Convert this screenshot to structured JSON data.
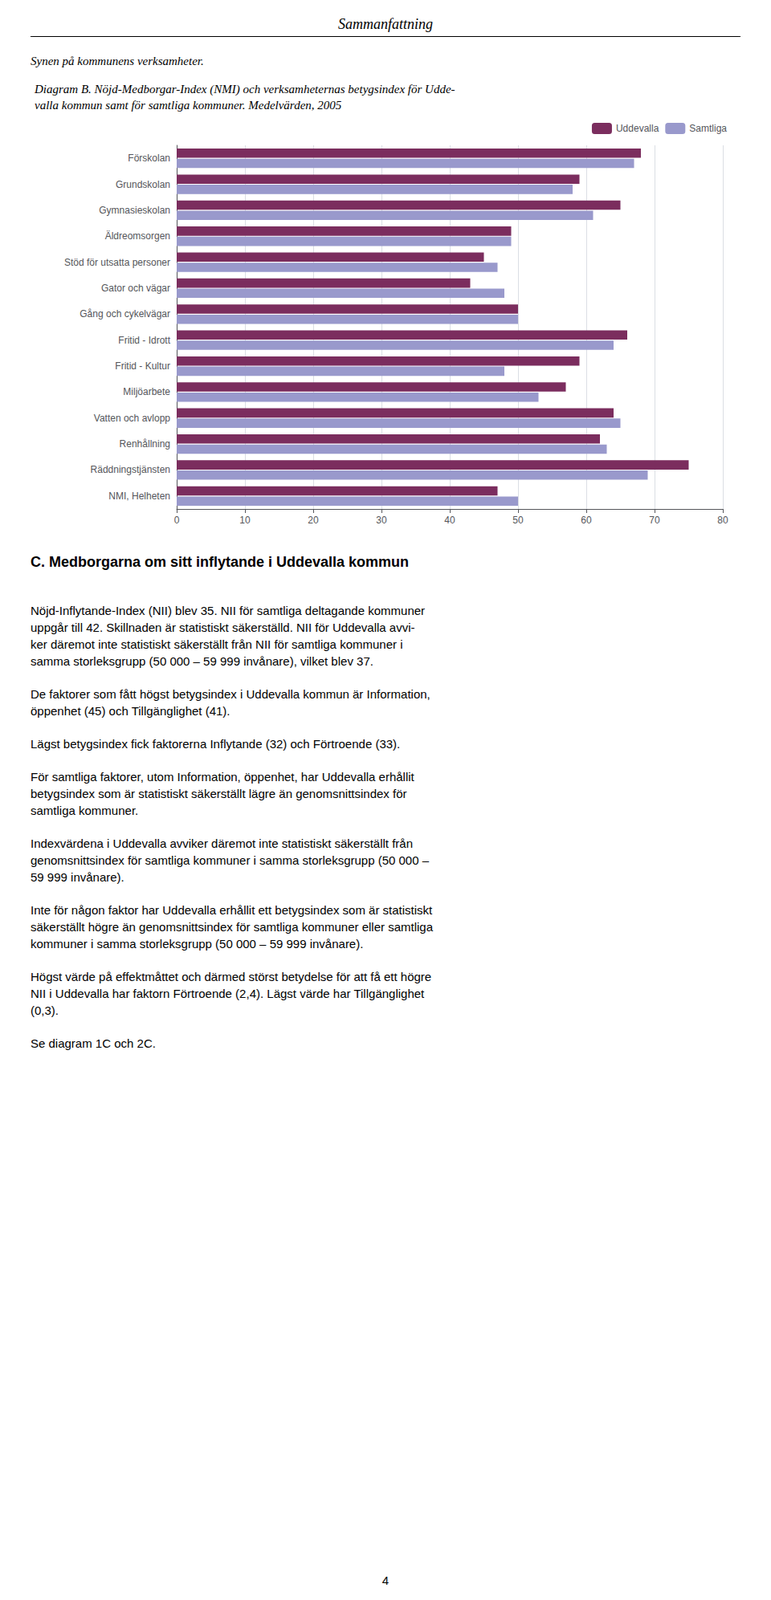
{
  "header": "Sammanfattning",
  "section_title": "Synen på kommunens verksamheter.",
  "section_heading": "C. Medborgarna om sitt inflytande i Uddevalla kommun",
  "paragraphs": [
    "Nöjd-Inflytande-Index (NII) blev 35. NII för samtliga deltagande kommuner\nuppgår till 42. Skillnaden är statistiskt säkerställd. NII för Uddevalla avvi-\nker däremot inte statistiskt säkerställt från NII för samtliga kommuner i\nsamma storleksgrupp (50 000 – 59 999 invånare), vilket blev 37.",
    "De faktorer som fått högst betygsindex i Uddevalla kommun är Information,\nöppenhet (45) och Tillgänglighet (41).",
    "Lägst betygsindex fick faktorerna Inflytande (32) och Förtroende (33).",
    "För samtliga faktorer, utom Information, öppenhet, har Uddevalla erhållit\nbetygsindex som är statistiskt säkerställt lägre än genomsnittsindex för\nsamtliga kommuner.",
    "Indexvärdena i Uddevalla avviker däremot inte statistiskt säkerställt från\ngenomsnittsindex för samtliga kommuner i samma storleksgrupp (50 000 –\n59 999 invånare).",
    "Inte för någon faktor har Uddevalla erhållit ett betygsindex som är statistiskt\nsäkerställt högre än genomsnittsindex för samtliga kommuner eller samtliga\nkommuner i samma storleksgrupp (50 000 – 59 999 invånare).",
    "Högst värde på effektmåttet och därmed störst betydelse för att få ett högre\nNII i Uddevalla har faktorn Förtroende (2,4). Lägst värde har Tillgänglighet\n(0,3).",
    "Se diagram 1C och 2C."
  ],
  "page_number": "4",
  "chart_data": {
    "type": "bar",
    "orientation": "horizontal",
    "title": "Diagram B. Nöjd-Medborgar-Index (NMI) och verksamheternas betygsindex för Udde-\nvalla kommun samt för samtliga kommuner. Medelvärden, 2005",
    "categories": [
      "Förskolan",
      "Grundskolan",
      "Gymnasieskolan",
      "Äldreomsorgen",
      "Stöd för utsatta personer",
      "Gator och vägar",
      "Gång och cykelvägar",
      "Fritid - Idrott",
      "Fritid - Kultur",
      "Miljöarbete",
      "Vatten och avlopp",
      "Renhållning",
      "Räddningstjänsten",
      "NMI, Helheten"
    ],
    "series": [
      {
        "name": "Uddevalla",
        "color": "#7B2D5E",
        "values": [
          68,
          59,
          65,
          49,
          45,
          43,
          50,
          66,
          59,
          57,
          64,
          62,
          75,
          47
        ]
      },
      {
        "name": "Samtliga",
        "color": "#9999CC",
        "values": [
          67,
          58,
          61,
          49,
          47,
          48,
          50,
          64,
          48,
          53,
          65,
          63,
          69,
          50
        ]
      }
    ],
    "xlim": [
      0,
      80
    ],
    "xticks": [
      0,
      10,
      20,
      30,
      40,
      50,
      60,
      70,
      80
    ],
    "grid": true,
    "legend": "upper right"
  }
}
